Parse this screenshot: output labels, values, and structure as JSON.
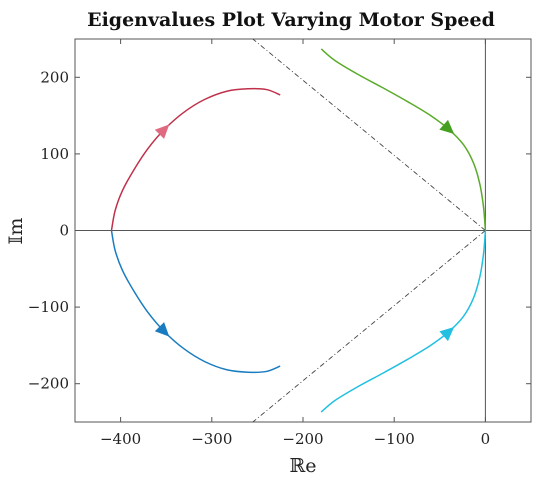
{
  "chart_data": {
    "type": "line",
    "title": "Eigenvalues Plot Varying Motor Speed",
    "xlabel": "ℝe",
    "ylabel": "𝕀m",
    "xlim": [
      -450,
      50
    ],
    "ylim": [
      -250,
      250
    ],
    "xticks": [
      -400,
      -300,
      -200,
      -100,
      0
    ],
    "yticks": [
      -200,
      -100,
      0,
      100,
      200
    ],
    "xtick_labels": [
      "−400",
      "−300",
      "−200",
      "−100",
      "0"
    ],
    "ytick_labels": [
      "−200",
      "−100",
      "0",
      "100",
      "200"
    ],
    "grid": false,
    "legend": "none",
    "damping_lines": [
      {
        "x": [
          0,
          -255
        ],
        "y": [
          0,
          250
        ]
      },
      {
        "x": [
          0,
          -255
        ],
        "y": [
          0,
          -250
        ]
      }
    ],
    "series": [
      {
        "color": "#c0304a",
        "arrow_color": "#e06a80",
        "arrow_index": 5,
        "x": [
          -410,
          -406,
          -398,
          -385,
          -370,
          -352,
          -331,
          -308,
          -283,
          -260,
          -240,
          -225
        ],
        "y": [
          0,
          26,
          52,
          80,
          107,
          132,
          154,
          171,
          182,
          185,
          184,
          177
        ]
      },
      {
        "color": "#1a7cc0",
        "arrow_color": "#1a7cc0",
        "arrow_index": 5,
        "x": [
          -410,
          -406,
          -398,
          -385,
          -370,
          -352,
          -331,
          -308,
          -283,
          -260,
          -240,
          -225
        ],
        "y": [
          0,
          -26,
          -52,
          -80,
          -107,
          -132,
          -154,
          -171,
          -182,
          -185,
          -184,
          -177
        ]
      },
      {
        "color": "#5aab2a",
        "arrow_color": "#45a020",
        "arrow_index": 5,
        "x": [
          0,
          -2,
          -6,
          -13,
          -24,
          -40,
          -60,
          -85,
          -112,
          -140,
          -165,
          -180
        ],
        "y": [
          0,
          30,
          60,
          88,
          112,
          132,
          150,
          168,
          186,
          204,
          222,
          237
        ]
      },
      {
        "color": "#22c0e0",
        "arrow_color": "#22c0e0",
        "arrow_index": 5,
        "x": [
          0,
          -2,
          -6,
          -13,
          -24,
          -40,
          -60,
          -85,
          -112,
          -140,
          -165,
          -180
        ],
        "y": [
          0,
          -30,
          -60,
          -88,
          -112,
          -132,
          -150,
          -168,
          -186,
          -204,
          -222,
          -237
        ]
      }
    ]
  }
}
